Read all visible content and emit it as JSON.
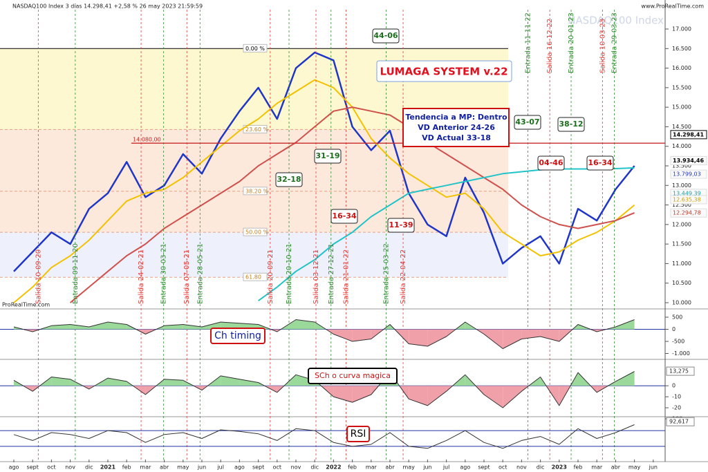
{
  "header": {
    "title": "NASDAQ100 Index 3 días 14.298,41 +2,58 % 26 may 2023 21:59:59",
    "site": "www.ProRealTime.com",
    "watermark": "NASDAQ100 Index",
    "footer": "ProRealTime.com"
  },
  "chart_data": [
    {
      "type": "line",
      "title": "LUMAGA SYSTEM v.22",
      "categories": [
        "ago",
        "sept",
        "oct",
        "nov",
        "dic",
        "2021",
        "feb",
        "mar",
        "abr",
        "may",
        "jun",
        "jul",
        "ago",
        "sept",
        "oct",
        "nov",
        "dic",
        "2022",
        "feb",
        "mar",
        "abr",
        "may",
        "jun",
        "jul",
        "ago",
        "sept",
        "oct",
        "nov",
        "dic",
        "2023",
        "feb",
        "mar",
        "abr",
        "may",
        "jun"
      ],
      "series": [
        {
          "color": "#1f35c8",
          "values": [
            10800,
            11300,
            11800,
            11500,
            12400,
            12800,
            13600,
            12700,
            13000,
            13800,
            13300,
            14200,
            14900,
            15500,
            14700,
            16000,
            16400,
            16200,
            14500,
            13900,
            14400,
            12800,
            12000,
            11700,
            13200,
            12300,
            11000,
            11400,
            11700,
            11000,
            12400,
            12100,
            12900,
            13500,
            null
          ]
        },
        {
          "color": "#f2c200",
          "values": [
            10000,
            10400,
            10900,
            11200,
            11600,
            12100,
            12600,
            12800,
            12900,
            13200,
            13600,
            14000,
            14400,
            14700,
            15100,
            15400,
            15700,
            15500,
            15000,
            14200,
            13700,
            13300,
            13000,
            12700,
            12800,
            12400,
            11800,
            11500,
            11200,
            11300,
            11600,
            11800,
            12100,
            12500,
            null
          ]
        },
        {
          "color": "#d0504c",
          "values": [
            null,
            null,
            null,
            10000,
            10400,
            10800,
            11200,
            11500,
            11900,
            12200,
            12500,
            12800,
            13100,
            13500,
            13800,
            14100,
            14500,
            14900,
            15000,
            14900,
            14800,
            14500,
            14100,
            13800,
            13500,
            13200,
            12900,
            12500,
            12200,
            12000,
            11900,
            12000,
            12100,
            12300,
            null
          ]
        },
        {
          "color": "#22c3c8",
          "values": [
            null,
            null,
            null,
            null,
            null,
            null,
            null,
            null,
            null,
            null,
            null,
            null,
            null,
            10050,
            10400,
            10800,
            11100,
            11500,
            11800,
            12200,
            12500,
            12800,
            12900,
            13000,
            13100,
            13200,
            13300,
            13350,
            13400,
            13420,
            13420,
            13420,
            13430,
            13449,
            null
          ]
        }
      ],
      "ylim": [
        10000,
        17000
      ],
      "yticks": [
        {
          "value": 10000,
          "label": "10.000"
        },
        {
          "value": 10500,
          "label": "10.500"
        },
        {
          "value": 11000,
          "label": "11.000"
        },
        {
          "value": 11500,
          "label": "11.500"
        },
        {
          "value": 12000,
          "label": "12.000"
        },
        {
          "value": 12500,
          "label": "12.500"
        },
        {
          "value": 13000,
          "label": "13.000"
        },
        {
          "value": 13500,
          "label": "13.500"
        },
        {
          "value": 14000,
          "label": "14.000"
        },
        {
          "value": 14500,
          "label": "14.500"
        },
        {
          "value": 15000,
          "label": "15.000"
        },
        {
          "value": 15500,
          "label": "15.500"
        },
        {
          "value": 16000,
          "label": "16.000"
        },
        {
          "value": 16500,
          "label": "16.500"
        },
        {
          "value": 17000,
          "label": "17.000"
        }
      ],
      "fib_levels": [
        {
          "value": 16500,
          "label": "0.00 %"
        },
        {
          "value": 14430,
          "label": "23.60 %"
        },
        {
          "value": 12850,
          "label": "38.20 %"
        },
        {
          "value": 11800,
          "label": "50.00 %"
        },
        {
          "value": 10650,
          "label": "61.80"
        }
      ],
      "hline": {
        "value": 14080,
        "label": "14.080,00",
        "color": "#c62828"
      },
      "price_labels": [
        {
          "value": 14298.41,
          "label": "14.298,41",
          "color": "#000000"
        },
        {
          "value": 13934.46,
          "label": "13.934,46",
          "color": "#000000"
        },
        {
          "value": 13799.03,
          "label": "13.799,03",
          "color": "#1f35c8"
        },
        {
          "value": 13449.39,
          "label": "13.449,39",
          "color": "#1a9ea3"
        },
        {
          "value": 12635.38,
          "label": "12.635,38",
          "color": "#c9a000"
        },
        {
          "value": 12294.78,
          "label": "12.294,78",
          "color": "#c0392b"
        }
      ],
      "signals": [
        {
          "label": "Salida 10-09-20",
          "color": "#e53935"
        },
        {
          "label": "Entrada 09-11-20",
          "color": "#2e8b2e"
        },
        {
          "label": "Salida 24-02-21",
          "color": "#e53935"
        },
        {
          "label": "Entrada 30-03-21",
          "color": "#2e8b2e"
        },
        {
          "label": "Salida 07-05-21",
          "color": "#e53935"
        },
        {
          "label": "Entrada 28-05-21",
          "color": "#2e8b2e"
        },
        {
          "label": "Salida 20-09-21",
          "color": "#e53935"
        },
        {
          "label": "Entrada 20-10-21",
          "color": "#2e8b2e"
        },
        {
          "label": "Salida 03-12-21",
          "color": "#e53935"
        },
        {
          "label": "Entrada 27-12-21",
          "color": "#2e8b2e"
        },
        {
          "label": "Salida 21-01-22",
          "color": "#e53935"
        },
        {
          "label": "Entrada 25-03-22",
          "color": "#2e8b2e"
        },
        {
          "label": "Salida 22-04-22",
          "color": "#e53935"
        },
        {
          "label": "Entrada 11-11-22",
          "color": "#2e8b2e"
        },
        {
          "label": "Salida 16-12-22",
          "color": "#e53935"
        },
        {
          "label": "Entrada 20-01-23",
          "color": "#2e8b2e"
        },
        {
          "label": "Salida 10-03-23",
          "color": "#e53935"
        },
        {
          "label": "Entrada 29-03-23",
          "color": "#2e8b2e"
        }
      ],
      "scores": [
        {
          "label": "44-06",
          "color": "#1b6e1b"
        },
        {
          "label": "31-19",
          "color": "#1b6e1b"
        },
        {
          "label": "32-18",
          "color": "#1b6e1b"
        },
        {
          "label": "16-34",
          "color": "#d01010"
        },
        {
          "label": "11-39",
          "color": "#d01010"
        },
        {
          "label": "43-07",
          "color": "#1b6e1b"
        },
        {
          "label": "38-12",
          "color": "#1b6e1b"
        },
        {
          "label": "04-46",
          "color": "#d01010"
        },
        {
          "label": "16-34",
          "color": "#d01010"
        }
      ],
      "trend_box": [
        "Tendencia a MP: Dentro",
        "VD Anterior 24-26",
        "VD Actual 33-18"
      ]
    },
    {
      "type": "area",
      "title": "Ch timing",
      "values": [
        100,
        -100,
        150,
        200,
        100,
        300,
        200,
        -200,
        150,
        200,
        100,
        300,
        250,
        200,
        -100,
        400,
        300,
        -200,
        -500,
        -400,
        200,
        -600,
        -700,
        -300,
        300,
        -200,
        -800,
        -400,
        -300,
        -500,
        200,
        -100,
        100,
        400,
        null
      ],
      "ylim": [
        -1100,
        700
      ],
      "yticks": [
        500,
        0,
        -500,
        {
          "value": -1000,
          "label": "-1.000"
        }
      ]
    },
    {
      "type": "area",
      "title": "SCh o curva magica",
      "values": [
        5,
        -5,
        8,
        6,
        -3,
        7,
        4,
        -8,
        6,
        5,
        -4,
        9,
        6,
        3,
        -6,
        10,
        5,
        -10,
        -15,
        -8,
        12,
        -12,
        -18,
        -5,
        10,
        -8,
        -20,
        -5,
        8,
        -18,
        12,
        -6,
        4,
        13,
        null
      ],
      "ylim": [
        -25,
        19
      ],
      "yticks": [
        0,
        -10,
        -20
      ],
      "current": {
        "value": 13.275,
        "label": "13,275"
      }
    },
    {
      "type": "line",
      "title": "RSI",
      "color": "#333333",
      "values": [
        60,
        45,
        65,
        60,
        50,
        70,
        65,
        40,
        60,
        65,
        50,
        72,
        68,
        62,
        45,
        75,
        70,
        40,
        30,
        35,
        65,
        30,
        25,
        45,
        70,
        40,
        25,
        45,
        55,
        35,
        75,
        50,
        65,
        85,
        null
      ],
      "ylim": [
        0,
        100
      ],
      "yticks": [
        100
      ],
      "levels": [
        70,
        30
      ],
      "current": {
        "value": 92.617,
        "label": "92,617"
      }
    }
  ]
}
